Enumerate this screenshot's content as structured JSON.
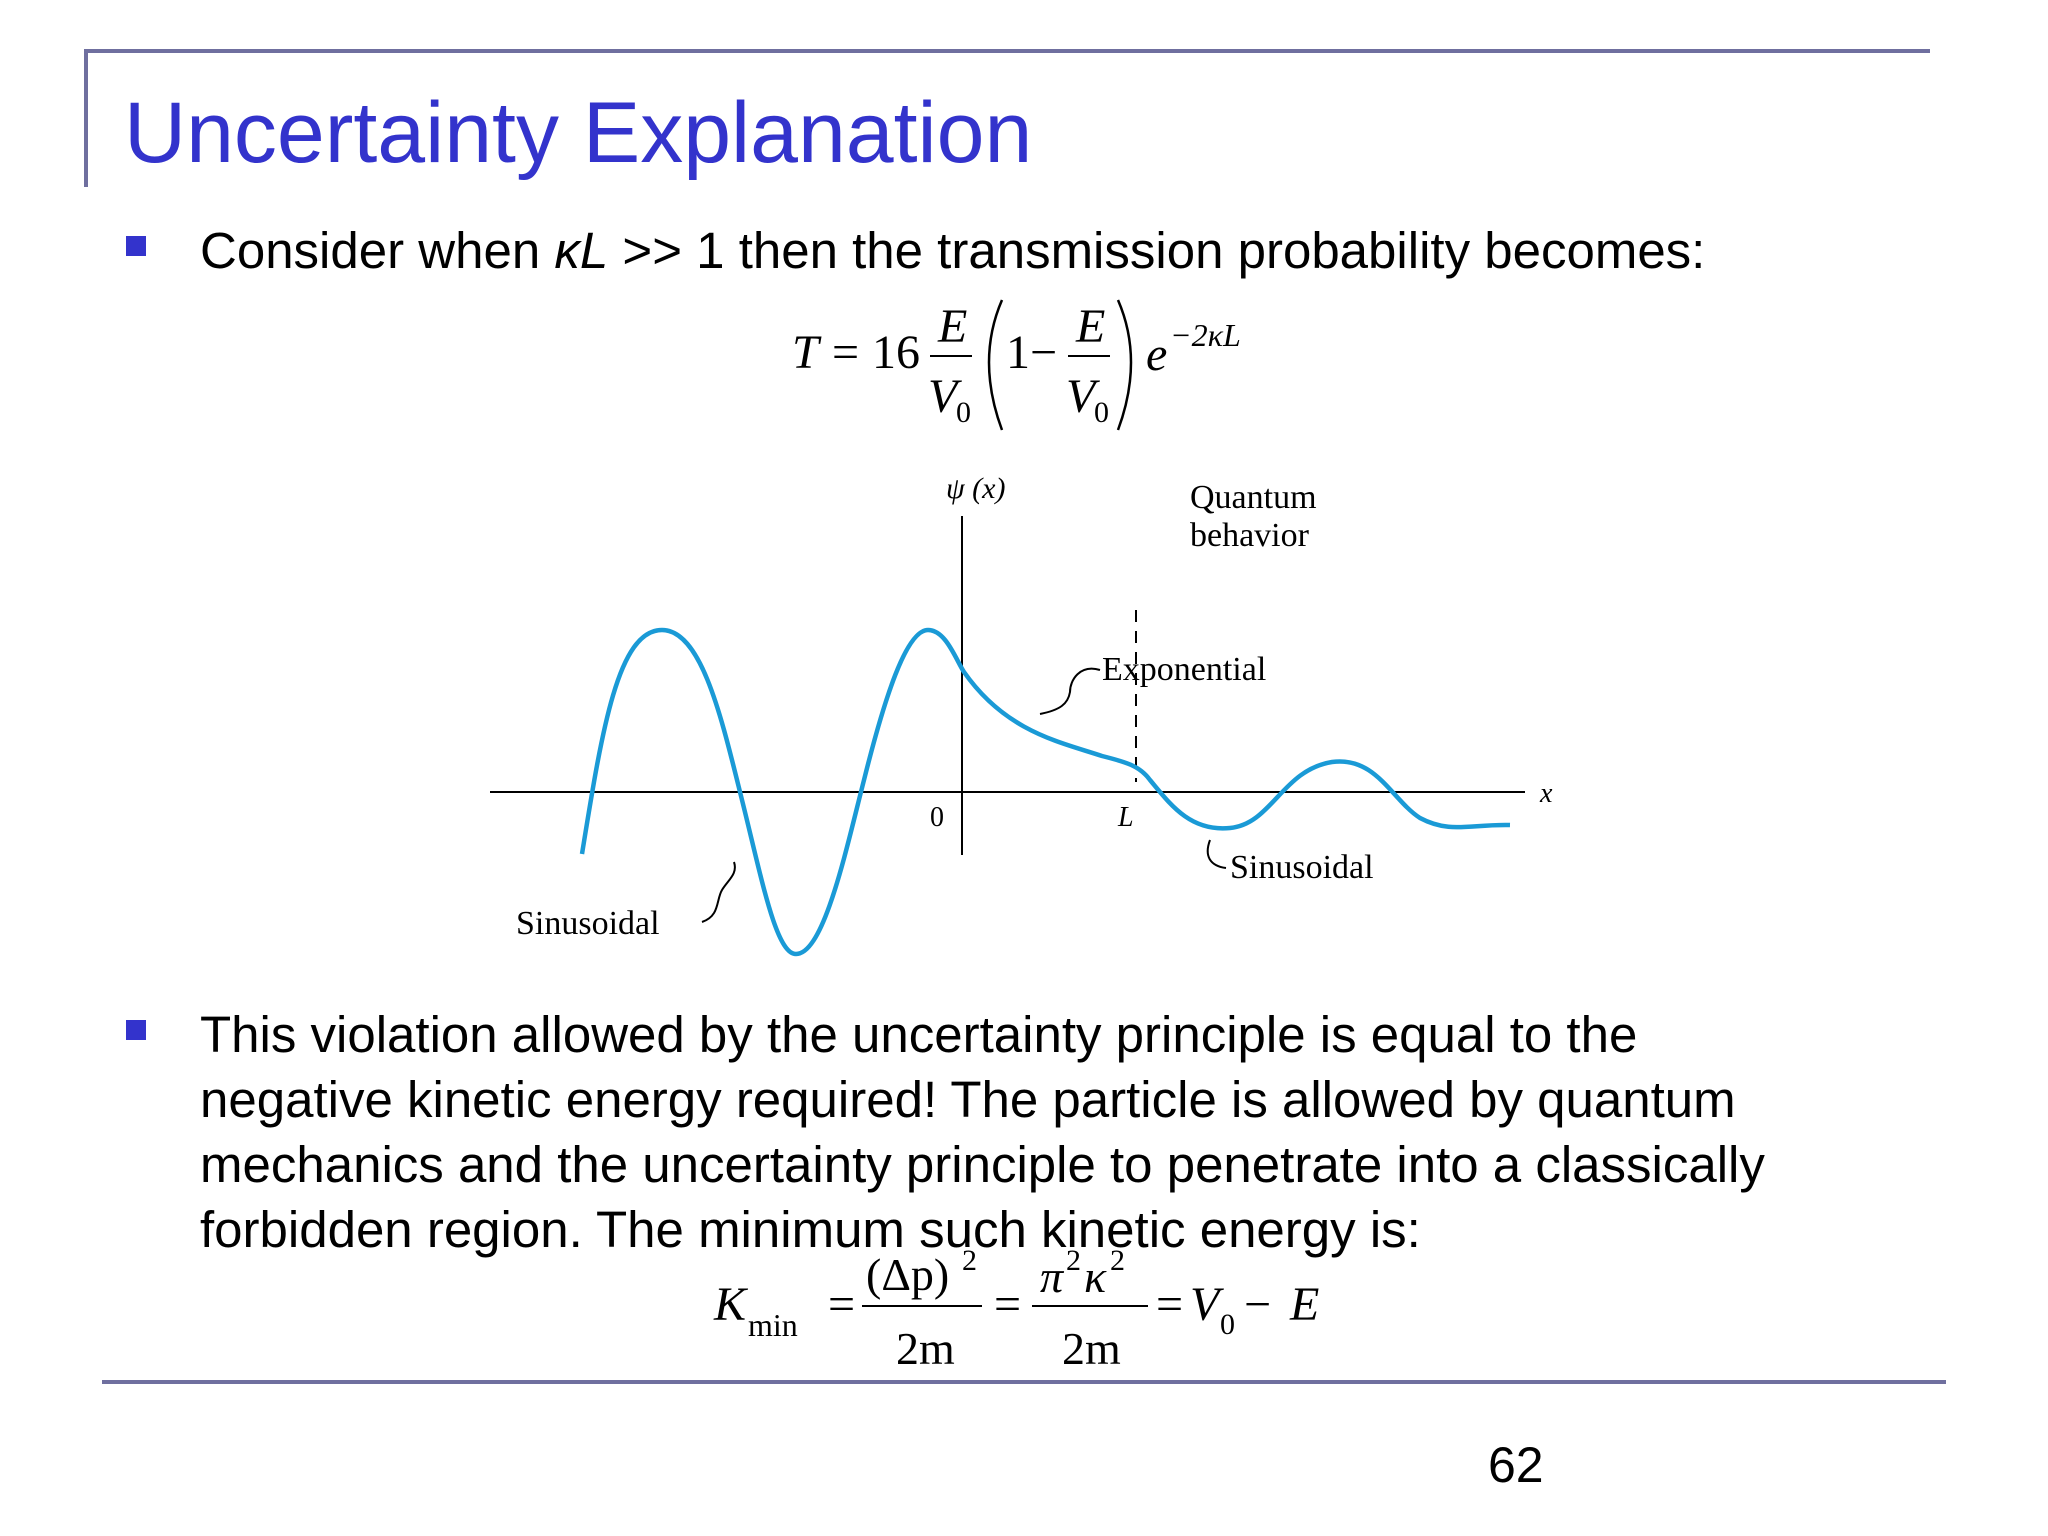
{
  "slide": {
    "title": "Uncertainty Explanation",
    "bullet1": {
      "prefix": "Consider when ",
      "kappa_l": "κL",
      "suffix": " >> 1 then the transmission probability becomes:"
    },
    "formula1": {
      "T": "T",
      "eq": "=",
      "coef": "16",
      "E": "E",
      "V": "V",
      "zero": "0",
      "one": "1",
      "minus": "−",
      "e": "e",
      "exponent": "−2κL"
    },
    "figure": {
      "y_axis_label": "ψ (x)",
      "x_axis_label": "x",
      "origin_label": "0",
      "L_label": "L",
      "quantum_label_line1": "Quantum",
      "quantum_label_line2": "behavior",
      "exponential_label": "Exponential",
      "sinusoidal_left_label": "Sinusoidal",
      "sinusoidal_right_label": "Sinusoidal",
      "curve_color": "#1a9ad6"
    },
    "bullet2": {
      "lines": [
        "This violation allowed by the uncertainty principle is equal to the",
        "negative kinetic energy required! The particle is allowed by quantum",
        "mechanics and the uncertainty principle to penetrate into a classically",
        "forbidden region. The minimum such kinetic energy is:"
      ]
    },
    "formula2": {
      "K": "K",
      "min": "min",
      "eq": "=",
      "num1": "(Δp)",
      "sq": "2",
      "den": "2m",
      "pi": "π",
      "kappa": "κ",
      "V": "V",
      "zero": "0",
      "minus": "−",
      "E": "E"
    },
    "page_number": "62",
    "accent_color": "#3333cc",
    "frame_color": "#6f6f9f"
  }
}
